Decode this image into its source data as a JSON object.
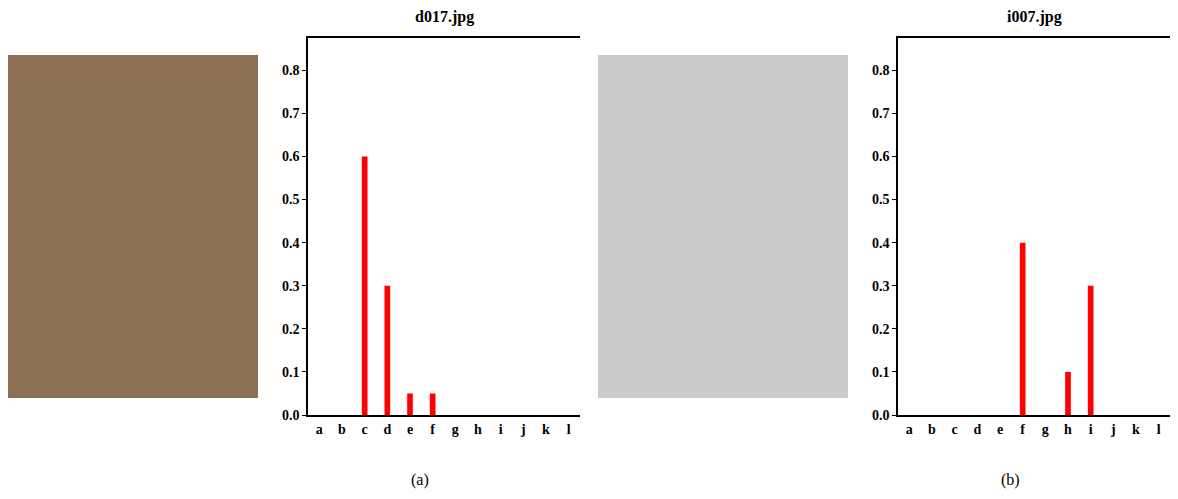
{
  "chart_data": [
    {
      "type": "bar",
      "title": "d017.jpg",
      "annotation": "(a)",
      "categories": [
        "a",
        "b",
        "c",
        "d",
        "e",
        "f",
        "g",
        "h",
        "i",
        "j",
        "k",
        "l"
      ],
      "values": [
        0,
        0,
        0.6,
        0.3,
        0.05,
        0.05,
        0,
        0,
        0,
        0,
        0,
        0
      ],
      "color": "#ff0000",
      "ylim": [
        0,
        0.875
      ],
      "yticks": [
        {
          "value": 0,
          "label": "0.0"
        },
        0.1,
        0.2,
        0.3,
        0.4,
        0.5,
        0.6,
        0.7,
        0.8
      ],
      "grid": false
    },
    {
      "type": "bar",
      "title": "i007.jpg",
      "annotation": "(b)",
      "categories": [
        "a",
        "b",
        "c",
        "d",
        "e",
        "f",
        "g",
        "h",
        "i",
        "j",
        "k",
        "l"
      ],
      "values": [
        0,
        0,
        0,
        0,
        0,
        0.4,
        0,
        0.1,
        0.3,
        0,
        0,
        0
      ],
      "color": "#ff0000",
      "ylim": [
        0,
        0.875
      ],
      "yticks": [
        {
          "value": 0,
          "label": "0.0"
        },
        0.1,
        0.2,
        0.3,
        0.4,
        0.5,
        0.6,
        0.7,
        0.8
      ],
      "grid": false
    }
  ]
}
